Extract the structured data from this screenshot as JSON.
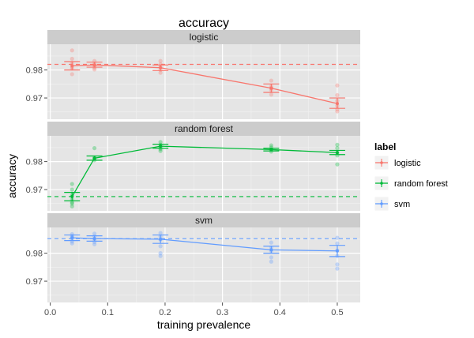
{
  "chart_data": {
    "type": "line",
    "title": "accuracy",
    "xlabel": "training prevalence",
    "ylabel": "accuracy",
    "xlim": [
      -0.005,
      0.54
    ],
    "x_ticks": [
      0.0,
      0.1,
      0.2,
      0.3,
      0.4,
      0.5
    ],
    "x_tick_labels": [
      "0.0",
      "0.1",
      "0.2",
      "0.3",
      "0.4",
      "0.5"
    ],
    "y_ticks": [
      0.97,
      0.98
    ],
    "y_tick_labels": [
      "0.97",
      "0.98"
    ],
    "ylim": [
      0.9624,
      0.9892
    ],
    "grid": true,
    "legend": {
      "title": "label",
      "position": "right",
      "entries": [
        "logistic",
        "random forest",
        "svm"
      ]
    },
    "colors": {
      "logistic": "#F8766D",
      "random forest": "#00BA38",
      "svm": "#619CFF"
    },
    "facets": [
      {
        "label": "logistic",
        "series": "logistic",
        "x": [
          0.038,
          0.077,
          0.192,
          0.385,
          0.5
        ],
        "mean": [
          0.9815,
          0.9818,
          0.9808,
          0.9735,
          0.968
        ],
        "error_low": [
          0.98,
          0.981,
          0.9798,
          0.972,
          0.9663
        ],
        "error_high": [
          0.983,
          0.9828,
          0.9818,
          0.975,
          0.97
        ],
        "reference_line": 0.982,
        "points": [
          [
            0.038,
            0.987
          ],
          [
            0.038,
            0.9785
          ],
          [
            0.038,
            0.9805
          ],
          [
            0.038,
            0.9825
          ],
          [
            0.038,
            0.984
          ],
          [
            0.038,
            0.9812
          ],
          [
            0.077,
            0.9832
          ],
          [
            0.077,
            0.9808
          ],
          [
            0.077,
            0.9822
          ],
          [
            0.077,
            0.9814
          ],
          [
            0.077,
            0.9802
          ],
          [
            0.192,
            0.9832
          ],
          [
            0.192,
            0.982
          ],
          [
            0.192,
            0.98
          ],
          [
            0.192,
            0.979
          ],
          [
            0.192,
            0.981
          ],
          [
            0.385,
            0.9762
          ],
          [
            0.385,
            0.9742
          ],
          [
            0.385,
            0.9728
          ],
          [
            0.385,
            0.9712
          ],
          [
            0.385,
            0.9735
          ],
          [
            0.5,
            0.9745
          ],
          [
            0.5,
            0.971
          ],
          [
            0.5,
            0.969
          ],
          [
            0.5,
            0.9672
          ],
          [
            0.5,
            0.966
          ],
          [
            0.5,
            0.9652
          ]
        ]
      },
      {
        "label": "random forest",
        "series": "random forest",
        "x": [
          0.038,
          0.077,
          0.192,
          0.385,
          0.5
        ],
        "mean": [
          0.9675,
          0.9812,
          0.9855,
          0.9843,
          0.9832
        ],
        "error_low": [
          0.966,
          0.9805,
          0.9848,
          0.9838,
          0.9825
        ],
        "error_high": [
          0.969,
          0.982,
          0.9862,
          0.9848,
          0.984
        ],
        "reference_line": 0.9675,
        "points": [
          [
            0.038,
            0.972
          ],
          [
            0.038,
            0.97
          ],
          [
            0.038,
            0.968
          ],
          [
            0.038,
            0.9665
          ],
          [
            0.038,
            0.965
          ],
          [
            0.038,
            0.964
          ],
          [
            0.038,
            0.9655
          ],
          [
            0.077,
            0.9848
          ],
          [
            0.077,
            0.9815
          ],
          [
            0.077,
            0.9805
          ],
          [
            0.077,
            0.981
          ],
          [
            0.192,
            0.987
          ],
          [
            0.192,
            0.986
          ],
          [
            0.192,
            0.985
          ],
          [
            0.192,
            0.9838
          ],
          [
            0.192,
            0.9845
          ],
          [
            0.385,
            0.9858
          ],
          [
            0.385,
            0.985
          ],
          [
            0.385,
            0.9842
          ],
          [
            0.385,
            0.9836
          ],
          [
            0.5,
            0.986
          ],
          [
            0.5,
            0.9848
          ],
          [
            0.5,
            0.9832
          ],
          [
            0.5,
            0.9822
          ],
          [
            0.5,
            0.979
          ]
        ]
      },
      {
        "label": "svm",
        "series": "svm",
        "x": [
          0.038,
          0.077,
          0.192,
          0.385,
          0.5
        ],
        "mean": [
          0.9855,
          0.9852,
          0.985,
          0.9812,
          0.9808
        ],
        "error_low": [
          0.9845,
          0.9843,
          0.9835,
          0.98,
          0.9788
        ],
        "error_high": [
          0.9865,
          0.9862,
          0.9865,
          0.9825,
          0.9828
        ],
        "reference_line": 0.9852,
        "points": [
          [
            0.038,
            0.9868
          ],
          [
            0.038,
            0.9862
          ],
          [
            0.038,
            0.9852
          ],
          [
            0.038,
            0.9842
          ],
          [
            0.038,
            0.9835
          ],
          [
            0.038,
            0.9858
          ],
          [
            0.077,
            0.987
          ],
          [
            0.077,
            0.986
          ],
          [
            0.077,
            0.985
          ],
          [
            0.077,
            0.984
          ],
          [
            0.077,
            0.9832
          ],
          [
            0.192,
            0.9872
          ],
          [
            0.192,
            0.986
          ],
          [
            0.192,
            0.9848
          ],
          [
            0.192,
            0.9825
          ],
          [
            0.192,
            0.98
          ],
          [
            0.192,
            0.979
          ],
          [
            0.385,
            0.9838
          ],
          [
            0.385,
            0.982
          ],
          [
            0.385,
            0.9808
          ],
          [
            0.385,
            0.9785
          ],
          [
            0.385,
            0.977
          ],
          [
            0.5,
            0.9855
          ],
          [
            0.5,
            0.9835
          ],
          [
            0.5,
            0.981
          ],
          [
            0.5,
            0.979
          ],
          [
            0.5,
            0.976
          ],
          [
            0.5,
            0.9745
          ]
        ]
      }
    ]
  }
}
